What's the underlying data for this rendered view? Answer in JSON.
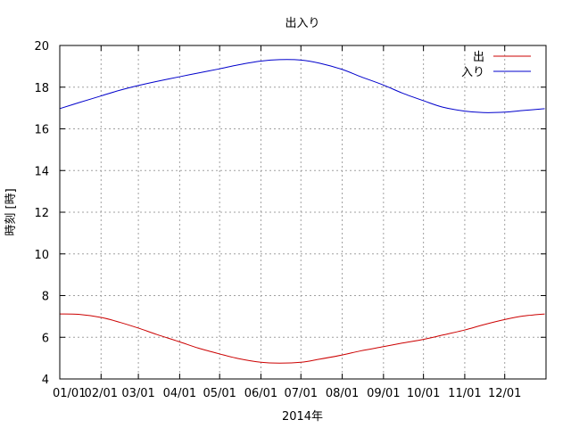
{
  "chart_data": {
    "type": "line",
    "title": "出入り",
    "xlabel": "2014年",
    "ylabel": "時刻 [時]",
    "xlim": [
      "2014-01-01",
      "2015-01-01"
    ],
    "ylim": [
      4,
      20
    ],
    "y_ticks": [
      4,
      6,
      8,
      10,
      12,
      14,
      16,
      18,
      20
    ],
    "x_ticks": [
      {
        "date": "2014-01-01",
        "label": "01/01"
      },
      {
        "date": "2014-02-01",
        "label": "02/01"
      },
      {
        "date": "2014-03-01",
        "label": "03/01"
      },
      {
        "date": "2014-04-01",
        "label": "04/01"
      },
      {
        "date": "2014-05-01",
        "label": "05/01"
      },
      {
        "date": "2014-06-01",
        "label": "06/01"
      },
      {
        "date": "2014-07-01",
        "label": "07/01"
      },
      {
        "date": "2014-08-01",
        "label": "08/01"
      },
      {
        "date": "2014-09-01",
        "label": "09/01"
      },
      {
        "date": "2014-10-01",
        "label": "10/01"
      },
      {
        "date": "2014-11-01",
        "label": "11/01"
      },
      {
        "date": "2014-12-01",
        "label": "12/01"
      }
    ],
    "grid": true,
    "legend": "top-right",
    "series": [
      {
        "name": "出",
        "color": "#cc0000",
        "x": [
          "2014-01-01",
          "2014-01-15",
          "2014-02-01",
          "2014-02-15",
          "2014-03-01",
          "2014-03-15",
          "2014-04-01",
          "2014-04-15",
          "2014-05-01",
          "2014-05-15",
          "2014-06-01",
          "2014-06-15",
          "2014-07-01",
          "2014-07-15",
          "2014-08-01",
          "2014-08-15",
          "2014-09-01",
          "2014-09-15",
          "2014-10-01",
          "2014-10-15",
          "2014-11-01",
          "2014-11-15",
          "2014-12-01",
          "2014-12-15",
          "2014-12-31"
        ],
        "values": [
          7.12,
          7.1,
          6.95,
          6.72,
          6.44,
          6.13,
          5.78,
          5.48,
          5.2,
          4.98,
          4.8,
          4.76,
          4.8,
          4.95,
          5.15,
          5.35,
          5.55,
          5.72,
          5.9,
          6.1,
          6.35,
          6.6,
          6.85,
          7.02,
          7.12
        ]
      },
      {
        "name": "入り",
        "color": "#0000cc",
        "x": [
          "2014-01-01",
          "2014-01-15",
          "2014-02-01",
          "2014-02-15",
          "2014-03-01",
          "2014-03-15",
          "2014-04-01",
          "2014-04-15",
          "2014-05-01",
          "2014-05-15",
          "2014-06-01",
          "2014-06-15",
          "2014-07-01",
          "2014-07-15",
          "2014-08-01",
          "2014-08-15",
          "2014-09-01",
          "2014-09-15",
          "2014-10-01",
          "2014-10-15",
          "2014-11-01",
          "2014-11-15",
          "2014-12-01",
          "2014-12-15",
          "2014-12-31"
        ],
        "values": [
          16.97,
          17.25,
          17.58,
          17.85,
          18.08,
          18.28,
          18.5,
          18.68,
          18.88,
          19.07,
          19.25,
          19.32,
          19.3,
          19.15,
          18.85,
          18.5,
          18.1,
          17.72,
          17.35,
          17.05,
          16.85,
          16.78,
          16.8,
          16.88,
          16.97
        ]
      }
    ]
  }
}
